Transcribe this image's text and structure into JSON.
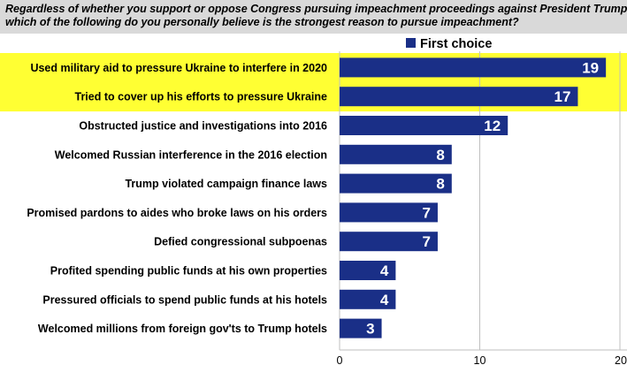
{
  "question": {
    "line1": "Regardless of whether you support or oppose Congress pursuing impeachment proceedings against President Trump,",
    "line2": "which of the following do you personally believe is the  strongest reason to pursue impeachment?"
  },
  "colors": {
    "bar": "#1a2f87",
    "highlight": "#ffff33",
    "question_bg": "#d9d9d9",
    "axis": "#bfbfbf",
    "label_text": "#000000",
    "value_text": "#ffffff"
  },
  "chart_data": {
    "type": "bar",
    "orientation": "horizontal",
    "categories": [
      "Used military aid to pressure Ukraine to interfere in 2020",
      "Tried to cover up his efforts to pressure Ukraine",
      "Obstructed justice and investigations into 2016",
      "Welcomed Russian interference in the 2016 election",
      "Trump violated campaign finance laws",
      "Promised pardons to aides who broke laws on his orders",
      "Defied congressional subpoenas",
      "Profited spending public funds at his own properties",
      "Pressured officials to spend public funds at his hotels",
      "Welcomed millions from foreign gov'ts to Trump hotels"
    ],
    "series": [
      {
        "name": "First choice",
        "values": [
          19,
          17,
          12,
          8,
          8,
          7,
          7,
          4,
          4,
          3
        ]
      }
    ],
    "highlighted_categories": [
      0,
      1
    ],
    "xlim": [
      0,
      20
    ],
    "xticks": [
      "0",
      "10",
      "20"
    ],
    "legend_position": "top",
    "grid": true
  }
}
